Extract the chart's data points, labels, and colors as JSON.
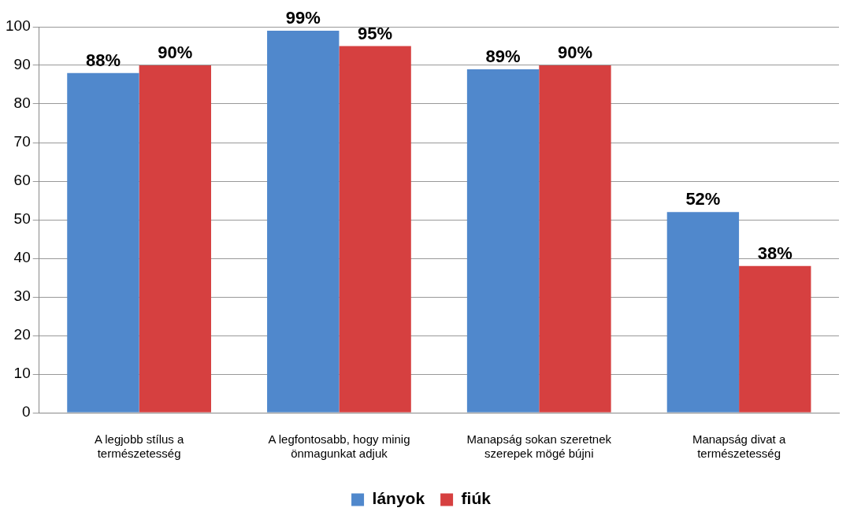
{
  "chart_data": {
    "type": "bar",
    "categories": [
      "A legjobb stílus a természetesség",
      "A legfontosabb, hogy minig önmagunkat adjuk",
      "Manapság sokan szeretnek szerepek mögé bújni",
      "Manapság divat a természetesség"
    ],
    "series": [
      {
        "name": "lányok",
        "color": "#5088cc",
        "values": [
          88,
          99,
          89,
          52
        ],
        "value_labels": [
          "88%",
          "99%",
          "89%",
          "52%"
        ]
      },
      {
        "name": "fiúk",
        "color": "#d64040",
        "values": [
          90,
          95,
          90,
          38
        ],
        "value_labels": [
          "90%",
          "95%",
          "90%",
          "38%"
        ]
      }
    ],
    "ylim": [
      0,
      100
    ],
    "yticks": [
      0,
      10,
      20,
      30,
      40,
      50,
      60,
      70,
      80,
      90,
      100
    ],
    "grid": "y",
    "legend": "bottom"
  }
}
